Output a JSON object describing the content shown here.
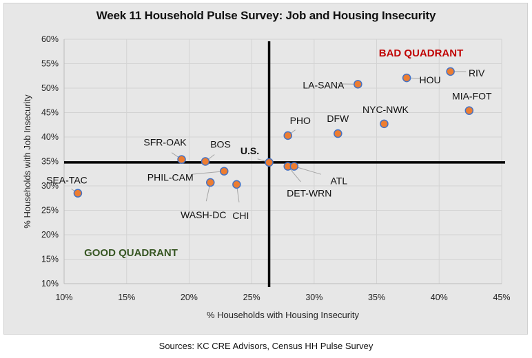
{
  "chart_data": {
    "type": "scatter",
    "title": "Week 11 Household Pulse Survey: Job and Housing Insecurity",
    "xlabel": "% Households with Housing Insecurity",
    "ylabel": "% Households with Job Insecurity",
    "xlim": [
      10,
      45
    ],
    "ylim": [
      10,
      60
    ],
    "x_ticks": [
      "10%",
      "15%",
      "20%",
      "25%",
      "30%",
      "35%",
      "40%",
      "45%"
    ],
    "y_ticks": [
      "10%",
      "15%",
      "20%",
      "25%",
      "30%",
      "35%",
      "40%",
      "45%",
      "50%",
      "55%",
      "60%"
    ],
    "grid": true,
    "quadrant_lines": {
      "x": 26.4,
      "y": 34.8
    },
    "annotations": {
      "bad": "BAD QUADRANT",
      "good": "GOOD QUADRANT"
    },
    "colors": {
      "marker": "#ed7d31",
      "marker_edge": "#4472c4",
      "bad": "#c00000",
      "good": "#375623",
      "background": "#e7e7e7"
    },
    "points": [
      {
        "label": "SEA-TAC",
        "x": 11.1,
        "y": 28.5
      },
      {
        "label": "SFR-OAK",
        "x": 19.4,
        "y": 35.4
      },
      {
        "label": "BOS",
        "x": 21.3,
        "y": 35.0
      },
      {
        "label": "PHIL-CAM",
        "x": 22.8,
        "y": 33.0
      },
      {
        "label": "WASH-DC",
        "x": 21.7,
        "y": 30.7
      },
      {
        "label": "CHI",
        "x": 23.8,
        "y": 30.3
      },
      {
        "label": "U.S.",
        "x": 26.4,
        "y": 34.8
      },
      {
        "label": "PHO",
        "x": 27.9,
        "y": 40.3
      },
      {
        "label": "DET-WRN",
        "x": 27.9,
        "y": 34.0
      },
      {
        "label": "ATL",
        "x": 28.4,
        "y": 34.0
      },
      {
        "label": "DFW",
        "x": 31.9,
        "y": 40.7
      },
      {
        "label": "LA-SANA",
        "x": 33.5,
        "y": 50.8
      },
      {
        "label": "NYC-NWK",
        "x": 35.6,
        "y": 42.7
      },
      {
        "label": "HOU",
        "x": 37.4,
        "y": 52.1
      },
      {
        "label": "RIV",
        "x": 40.9,
        "y": 53.4
      },
      {
        "label": "MIA-FOT",
        "x": 42.4,
        "y": 45.4
      }
    ]
  },
  "footer": {
    "sources": "Sources: KC CRE Advisors, Census HH Pulse Survey"
  }
}
